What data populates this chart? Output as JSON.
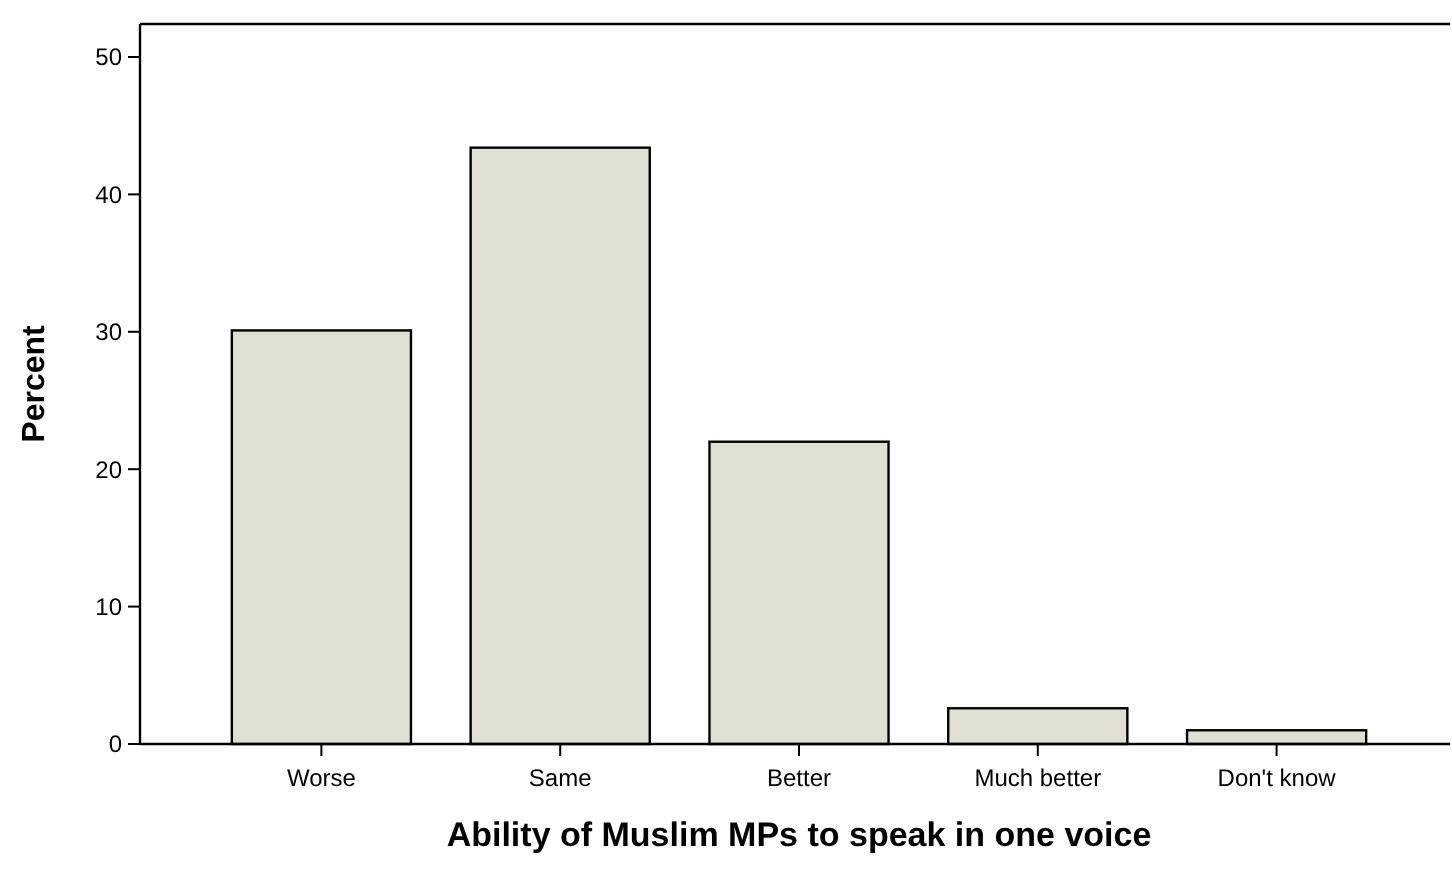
{
  "chart_data": {
    "type": "bar",
    "xlabel": "Ability of Muslim MPs to speak in one voice",
    "ylabel": "Percent",
    "categories": [
      "Worse",
      "Same",
      "Better",
      "Much better",
      "Don't know"
    ],
    "values": [
      30.1,
      43.4,
      22.0,
      2.6,
      1.0
    ],
    "color": "#e0e0d2",
    "ylim": [
      0,
      52.4
    ],
    "yticks": [
      0,
      10,
      20,
      30,
      40,
      50
    ],
    "grid": false
  }
}
